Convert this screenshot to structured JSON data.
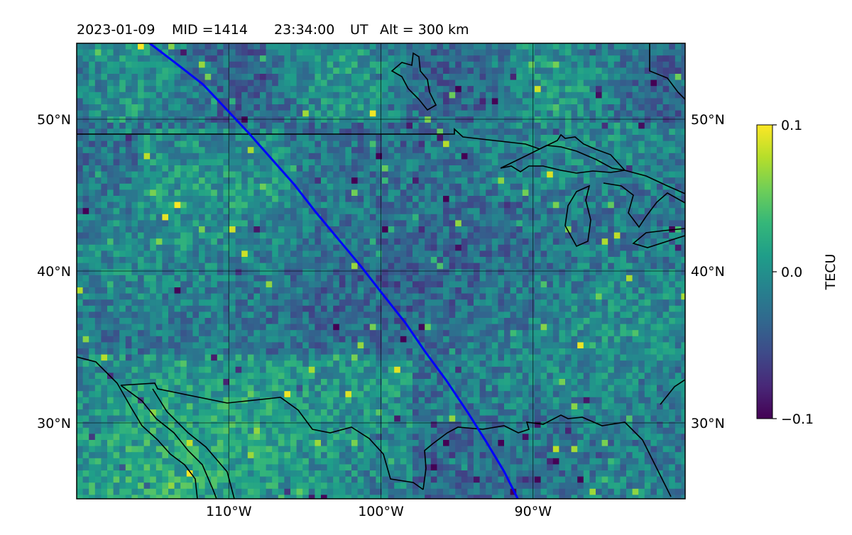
{
  "title": {
    "date": "2023-01-09",
    "mid": "MID =1414",
    "time": "23:34:00",
    "ut": "UT",
    "alt": "Alt = 300 km"
  },
  "map": {
    "lon_range": [
      -120,
      -80
    ],
    "lat_range": [
      25,
      55
    ],
    "lat_ticks": [
      {
        "value": 50,
        "label": "50°N"
      },
      {
        "value": 40,
        "label": "40°N"
      },
      {
        "value": 30,
        "label": "30°N"
      }
    ],
    "lon_ticks": [
      {
        "value": -110,
        "label": "110°W"
      },
      {
        "value": -100,
        "label": "100°W"
      },
      {
        "value": -90,
        "label": "90°W"
      }
    ],
    "gridlines": true,
    "trajectory_color": "#0000ff",
    "trajectory": [
      [
        -115.2,
        55
      ],
      [
        -113.5,
        53.7
      ],
      [
        -111.7,
        52.3
      ],
      [
        -110.2,
        50.7
      ],
      [
        -108.7,
        49.1
      ],
      [
        -107.2,
        47.4
      ],
      [
        -105.7,
        45.7
      ],
      [
        -104.3,
        43.9
      ],
      [
        -102.8,
        42.1
      ],
      [
        -101.3,
        40.3
      ],
      [
        -99.9,
        38.5
      ],
      [
        -98.4,
        36.6
      ],
      [
        -97.1,
        34.7
      ],
      [
        -95.7,
        32.8
      ],
      [
        -94.3,
        30.7
      ],
      [
        -93.1,
        28.8
      ],
      [
        -91.9,
        26.8
      ],
      [
        -91.0,
        25
      ]
    ]
  },
  "colorbar": {
    "label": "TECU",
    "min": -0.1,
    "max": 0.1,
    "ticks": [
      {
        "value": 0.1,
        "label": "0.1"
      },
      {
        "value": 0.0,
        "label": "0.0"
      },
      {
        "value": -0.1,
        "label": "−0.1"
      }
    ],
    "colormap": "viridis",
    "colors": [
      "#440154",
      "#482878",
      "#3e4a89",
      "#31688e",
      "#26828e",
      "#1f9e89",
      "#35b779",
      "#6ece58",
      "#b5de2b",
      "#fde725"
    ]
  }
}
